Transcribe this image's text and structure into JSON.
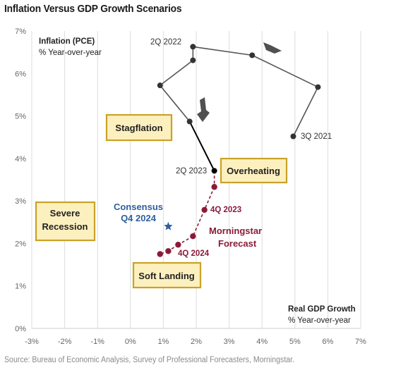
{
  "title": "Inflation Versus GDP Growth Scenarios",
  "source": "Source: Bureau of Economic Analysis, Survey of Professional Forecasters, Morningstar.",
  "chart_data": {
    "type": "scatter",
    "x_axis": {
      "title": "Real GDP Growth",
      "subtitle": "% Year-over-year",
      "range": [
        -3,
        7
      ],
      "ticks": [
        "-3%",
        "-2%",
        "-1%",
        "0%",
        "1%",
        "2%",
        "3%",
        "4%",
        "5%",
        "6%",
        "7%"
      ]
    },
    "y_axis": {
      "title": "Inflation (PCE)",
      "subtitle": "% Year-over-year",
      "range": [
        0,
        7
      ],
      "ticks": [
        "0%",
        "1%",
        "2%",
        "3%",
        "4%",
        "5%",
        "6%",
        "7%"
      ]
    },
    "grid": "vertical",
    "series": [
      {
        "name": "historical",
        "color": "#555555",
        "points": [
          {
            "x": 4.95,
            "y": 4.52
          },
          {
            "x": 5.7,
            "y": 5.68
          },
          {
            "x": 3.7,
            "y": 6.43
          },
          {
            "x": 1.9,
            "y": 6.63
          },
          {
            "x": 1.9,
            "y": 6.31
          },
          {
            "x": 0.9,
            "y": 5.72
          },
          {
            "x": 1.8,
            "y": 4.87
          },
          {
            "x": 2.55,
            "y": 3.71
          }
        ]
      },
      {
        "name": "Morningstar Forecast",
        "color": "#8b1a3a",
        "points": [
          {
            "x": 2.55,
            "y": 3.71
          },
          {
            "x": 2.55,
            "y": 3.33
          },
          {
            "x": 2.25,
            "y": 2.79
          },
          {
            "x": 1.9,
            "y": 2.17
          },
          {
            "x": 1.45,
            "y": 1.97
          },
          {
            "x": 1.15,
            "y": 1.82
          },
          {
            "x": 0.9,
            "y": 1.75
          }
        ]
      }
    ],
    "consensus": {
      "label_line1": "Consensus",
      "label_line2": "Q4 2024",
      "x": 1.15,
      "y": 2.4,
      "color": "#2e5f9e"
    },
    "point_labels": {
      "q3_2021": "3Q 2021",
      "q2_2022": "2Q 2022",
      "q2_2023": "2Q 2023",
      "q4_2023": "4Q 2023",
      "q4_2024": "4Q 2024",
      "forecast_line1": "Morningstar",
      "forecast_line2": "Forecast"
    },
    "callouts": {
      "stagflation": "Stagflation",
      "overheating": "Overheating",
      "severe_line1": "Severe",
      "severe_line2": "Recession",
      "soft_landing": "Soft Landing"
    },
    "colors": {
      "callout_fill": "#fdf0bf",
      "callout_border": "#c9a227",
      "arrow": "#505050"
    }
  }
}
